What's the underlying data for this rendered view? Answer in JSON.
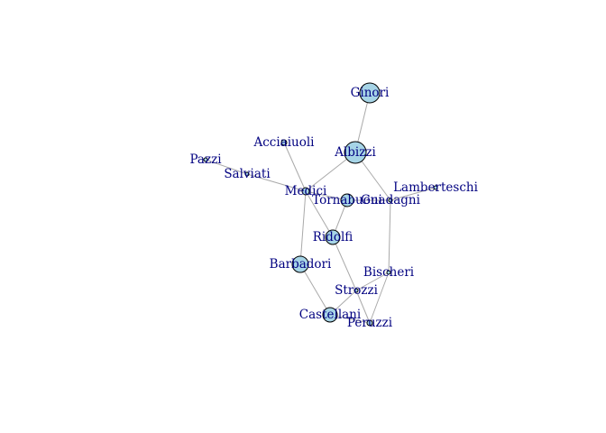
{
  "network": {
    "nodes": [
      {
        "id": "Ginori",
        "label": "Ginori",
        "size": 11
      },
      {
        "id": "Albizzi",
        "label": "Albizzi",
        "size": 12
      },
      {
        "id": "Acciaiuoli",
        "label": "Acciaiuoli",
        "size": 3
      },
      {
        "id": "Pazzi",
        "label": "Pazzi",
        "size": 2
      },
      {
        "id": "Salviati",
        "label": "Salviati",
        "size": 2
      },
      {
        "id": "Medici",
        "label": "Medici",
        "size": 4
      },
      {
        "id": "Tornabuoni",
        "label": "Tornabuoni",
        "size": 7
      },
      {
        "id": "Guadagni",
        "label": "Guadagni",
        "size": 2
      },
      {
        "id": "Lamberteschi",
        "label": "Lamberteschi",
        "size": 2
      },
      {
        "id": "Ridolfi",
        "label": "Ridolfi",
        "size": 8
      },
      {
        "id": "Barbadori",
        "label": "Barbadori",
        "size": 9
      },
      {
        "id": "Bischeri",
        "label": "Bischeri",
        "size": 2
      },
      {
        "id": "Strozzi",
        "label": "Strozzi",
        "size": 2
      },
      {
        "id": "Castellani",
        "label": "Castellani",
        "size": 8
      },
      {
        "id": "Peruzzi",
        "label": "Peruzzi",
        "size": 3
      }
    ],
    "edges": [
      [
        "Ginori",
        "Albizzi"
      ],
      [
        "Albizzi",
        "Medici"
      ],
      [
        "Albizzi",
        "Guadagni"
      ],
      [
        "Acciaiuoli",
        "Medici"
      ],
      [
        "Pazzi",
        "Salviati"
      ],
      [
        "Salviati",
        "Medici"
      ],
      [
        "Medici",
        "Tornabuoni"
      ],
      [
        "Medici",
        "Ridolfi"
      ],
      [
        "Medici",
        "Barbadori"
      ],
      [
        "Tornabuoni",
        "Guadagni"
      ],
      [
        "Tornabuoni",
        "Ridolfi"
      ],
      [
        "Guadagni",
        "Lamberteschi"
      ],
      [
        "Guadagni",
        "Bischeri"
      ],
      [
        "Ridolfi",
        "Strozzi"
      ],
      [
        "Barbadori",
        "Castellani"
      ],
      [
        "Bischeri",
        "Strozzi"
      ],
      [
        "Bischeri",
        "Peruzzi"
      ],
      [
        "Strozzi",
        "Castellani"
      ],
      [
        "Strozzi",
        "Peruzzi"
      ],
      [
        "Castellani",
        "Peruzzi"
      ]
    ]
  }
}
